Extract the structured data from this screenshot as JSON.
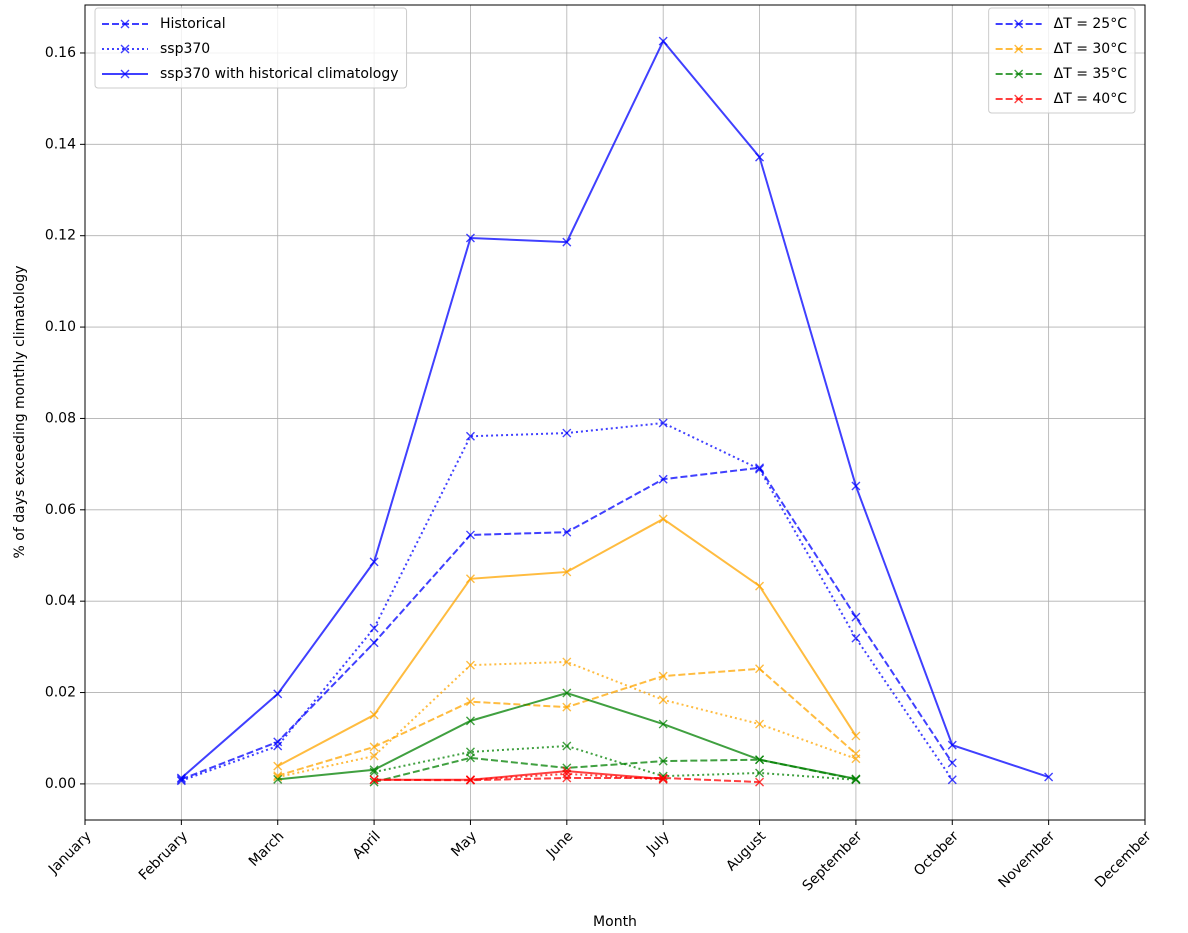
{
  "chart_data": {
    "type": "line",
    "x_label": "Month",
    "y_label": "% of days exceeding monthly climatology",
    "categories": [
      "January",
      "February",
      "March",
      "April",
      "May",
      "June",
      "July",
      "August",
      "September",
      "October",
      "November",
      "December"
    ],
    "ylim": [
      -0.0079,
      0.1705
    ],
    "yticks": [
      {
        "value": 0,
        "label": "0.00"
      },
      {
        "value": 0.02,
        "label": "0.02"
      },
      {
        "value": 0.04,
        "label": "0.04"
      },
      {
        "value": 0.06,
        "label": "0.06"
      },
      {
        "value": 0.08,
        "label": "0.08"
      },
      {
        "value": 0.1,
        "label": "0.10"
      },
      {
        "value": 0.12,
        "label": "0.12"
      },
      {
        "value": 0.14,
        "label": "0.14"
      },
      {
        "value": 0.16,
        "label": "0.16"
      }
    ],
    "grid": true,
    "series": [
      {
        "color": "#0000ff",
        "linestyle": "solid",
        "values": [
          null,
          0.0013,
          0.0197,
          0.0486,
          0.1195,
          0.1186,
          0.1626,
          0.1372,
          0.0652,
          0.0085,
          0.0015,
          null
        ]
      },
      {
        "color": "#0000ff",
        "linestyle": "dashed",
        "values": [
          null,
          0.001,
          0.0092,
          0.0309,
          0.0545,
          0.0551,
          0.0667,
          0.0692,
          0.0365,
          0.0046,
          null,
          null
        ]
      },
      {
        "color": "#0000ff",
        "linestyle": "dotted",
        "values": [
          null,
          0.0007,
          0.0083,
          0.0341,
          0.0761,
          0.0768,
          0.079,
          0.0689,
          0.0319,
          0.0009,
          null,
          null
        ]
      },
      {
        "color": "#ffa500",
        "linestyle": "solid",
        "values": [
          null,
          null,
          0.0039,
          0.0151,
          0.0449,
          0.0464,
          0.058,
          0.0433,
          0.0105,
          null,
          null,
          null
        ]
      },
      {
        "color": "#ffa500",
        "linestyle": "dashed",
        "values": [
          null,
          null,
          0.0018,
          0.0081,
          0.018,
          0.0168,
          0.0236,
          0.0252,
          0.0066,
          null,
          null,
          null
        ]
      },
      {
        "color": "#ffa500",
        "linestyle": "dotted",
        "values": [
          null,
          null,
          0.0015,
          0.0061,
          0.026,
          0.0267,
          0.0184,
          0.0131,
          0.0055,
          null,
          null,
          null
        ]
      },
      {
        "color": "#008000",
        "linestyle": "solid",
        "values": [
          null,
          null,
          0.001,
          0.0031,
          0.0138,
          0.0199,
          0.0131,
          0.0053,
          0.0011,
          null,
          null,
          null
        ]
      },
      {
        "color": "#008000",
        "linestyle": "dashed",
        "values": [
          null,
          null,
          null,
          0.0004,
          0.0057,
          0.0035,
          0.005,
          0.0053,
          0.001,
          null,
          null,
          null
        ]
      },
      {
        "color": "#008000",
        "linestyle": "dotted",
        "values": [
          null,
          null,
          null,
          0.0026,
          0.007,
          0.0083,
          0.0017,
          0.0024,
          0.0009,
          null,
          null,
          null
        ]
      },
      {
        "color": "#ff0000",
        "linestyle": "solid",
        "values": [
          null,
          null,
          null,
          0.0009,
          0.0009,
          0.0028,
          0.0011,
          null,
          null,
          null,
          null,
          null
        ]
      },
      {
        "color": "#ff0000",
        "linestyle": "dashed",
        "values": [
          null,
          null,
          null,
          0.0009,
          0.0008,
          0.0013,
          0.0013,
          0.0004,
          null,
          null,
          null,
          null
        ]
      },
      {
        "color": "#ff0000",
        "linestyle": "dotted",
        "values": [
          null,
          null,
          null,
          null,
          0.0009,
          0.0022,
          0.001,
          null,
          null,
          null,
          null,
          null
        ]
      }
    ],
    "legends": [
      {
        "loc": "upper left",
        "entries": [
          {
            "label": "Historical",
            "color": "#0000ff",
            "linestyle": "dashed"
          },
          {
            "label": "ssp370",
            "color": "#0000ff",
            "linestyle": "dotted"
          },
          {
            "label": "ssp370 with historical climatology",
            "color": "#0000ff",
            "linestyle": "solid"
          }
        ]
      },
      {
        "loc": "upper right",
        "entries": [
          {
            "label": "ΔT = 25°C",
            "color": "#0000ff",
            "linestyle": "dashed"
          },
          {
            "label": "ΔT = 30°C",
            "color": "#ffa500",
            "linestyle": "dashed"
          },
          {
            "label": "ΔT = 35°C",
            "color": "#008000",
            "linestyle": "dashed"
          },
          {
            "label": "ΔT = 40°C",
            "color": "#ff0000",
            "linestyle": "dashed"
          }
        ]
      }
    ]
  }
}
